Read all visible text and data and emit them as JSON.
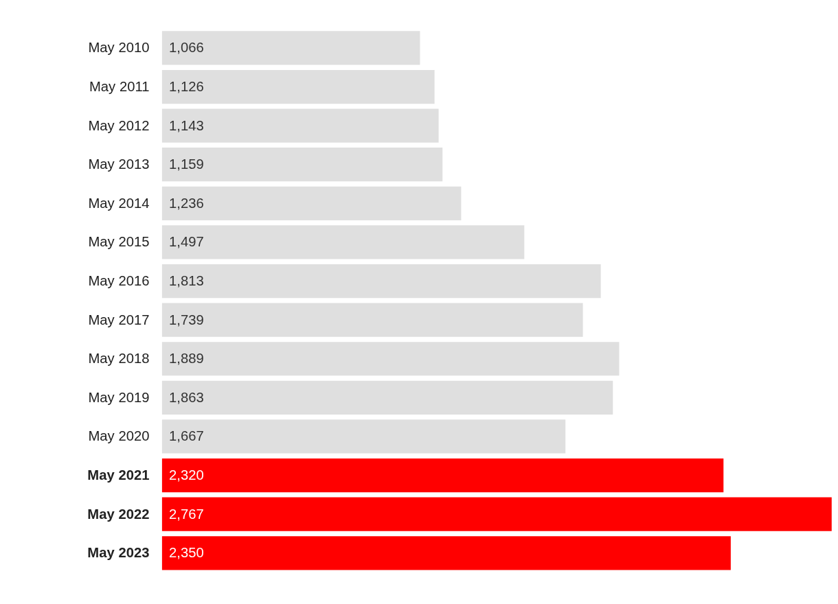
{
  "chart_data": {
    "type": "bar",
    "orientation": "horizontal",
    "categories": [
      "May 2010",
      "May 2011",
      "May 2012",
      "May 2013",
      "May 2014",
      "May 2015",
      "May 2016",
      "May 2017",
      "May 2018",
      "May 2019",
      "May 2020",
      "May 2021",
      "May 2022",
      "May 2023"
    ],
    "values": [
      1066,
      1126,
      1143,
      1159,
      1236,
      1497,
      1813,
      1739,
      1889,
      1863,
      1667,
      2320,
      2767,
      2350
    ],
    "value_labels": [
      "1,066",
      "1,126",
      "1,143",
      "1,159",
      "1,236",
      "1,497",
      "1,813",
      "1,739",
      "1,889",
      "1,863",
      "1,667",
      "2,320",
      "2,767",
      "2,350"
    ],
    "colors": [
      "#dfdfdf",
      "#dfdfdf",
      "#dfdfdf",
      "#dfdfdf",
      "#dfdfdf",
      "#dfdfdf",
      "#dfdfdf",
      "#dfdfdf",
      "#dfdfdf",
      "#dfdfdf",
      "#dfdfdf",
      "#ff0000",
      "#ff0000",
      "#ff0000"
    ]
  }
}
